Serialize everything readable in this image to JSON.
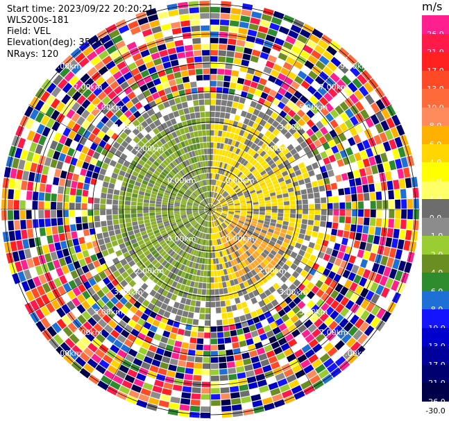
{
  "header": {
    "start_time": "Start time: 2023/09/22 20:20:21",
    "instrument": "WLS200s-181",
    "field": "Field: VEL",
    "elevation": "Elevation(deg): 35.30",
    "nrays": "NRays: 120"
  },
  "ring_labels": [
    "0.00km",
    "2.00km",
    "3.00km",
    "5.00km",
    "7.00km",
    "9.00km"
  ],
  "colorbar": {
    "unit": "m/s",
    "ticks": [
      "26.0",
      "21.0",
      "17.0",
      "13.0",
      "10.0",
      "8.0",
      "6.0",
      "4.0",
      "2.0",
      "1.0",
      "0.0",
      "-1.0",
      "-2.0",
      "-4.0",
      "-6.0",
      "-8.0",
      "-10.0",
      "-13.0",
      "-17.0",
      "-21.0",
      "-26.0",
      "-30.0"
    ],
    "colors": [
      "#ff1f8e",
      "#ff1a4a",
      "#ff2020",
      "#ff4a28",
      "#ff6a3a",
      "#ff8a5c",
      "#ffb000",
      "#ffd600",
      "#ffff00",
      "#ffff66",
      "#6d6d6d",
      "#8c8c8c",
      "#9acd32",
      "#6b8e23",
      "#2e8b2e",
      "#1e6fd6",
      "#1414ff",
      "#0000cc",
      "#00009a",
      "#000070",
      "#00004a"
    ]
  }
}
